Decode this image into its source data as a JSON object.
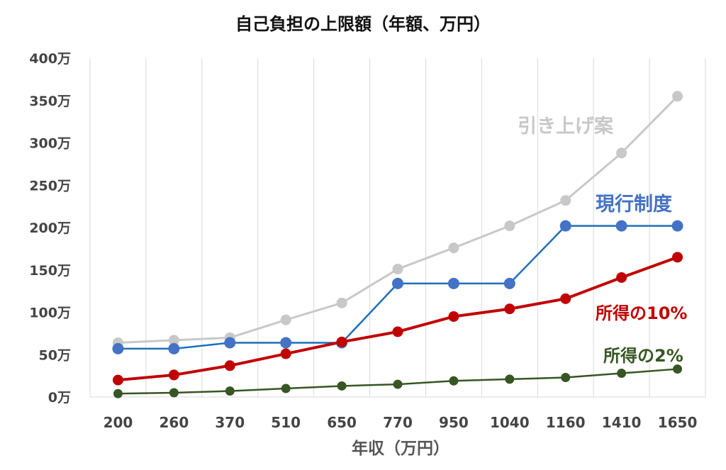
{
  "chart_data": {
    "type": "line",
    "title": "自己負担の上限額（年額、万円）",
    "xlabel": "年収（万円）",
    "ylabel": "",
    "categories": [
      "200",
      "260",
      "370",
      "510",
      "650",
      "770",
      "950",
      "1040",
      "1160",
      "1410",
      "1650"
    ],
    "y_ticks": [
      "0万",
      "50万",
      "100万",
      "150万",
      "200万",
      "250万",
      "300万",
      "350万",
      "400万"
    ],
    "ylim": [
      0,
      400
    ],
    "grid": "vertical",
    "legend": "none (series labelled inline)",
    "series": [
      {
        "name": "引き上げ案",
        "color": "#c8c8c8",
        "values": [
          64,
          67,
          70,
          91,
          111,
          151,
          176,
          202,
          232,
          288,
          355
        ]
      },
      {
        "name": "現行制度",
        "color": "#1f6fba",
        "marker_color": "#4472c4",
        "values": [
          57,
          57,
          64,
          64,
          64,
          134,
          134,
          134,
          202,
          202,
          202
        ]
      },
      {
        "name": "所得の10%",
        "color": "#c00000",
        "values": [
          20,
          26,
          37,
          51,
          65,
          77,
          95,
          104,
          116,
          141,
          165
        ]
      },
      {
        "name": "所得の2%",
        "color": "#375623",
        "values": [
          4,
          5,
          7,
          10,
          13,
          15,
          19,
          21,
          23,
          28,
          33
        ]
      }
    ]
  }
}
